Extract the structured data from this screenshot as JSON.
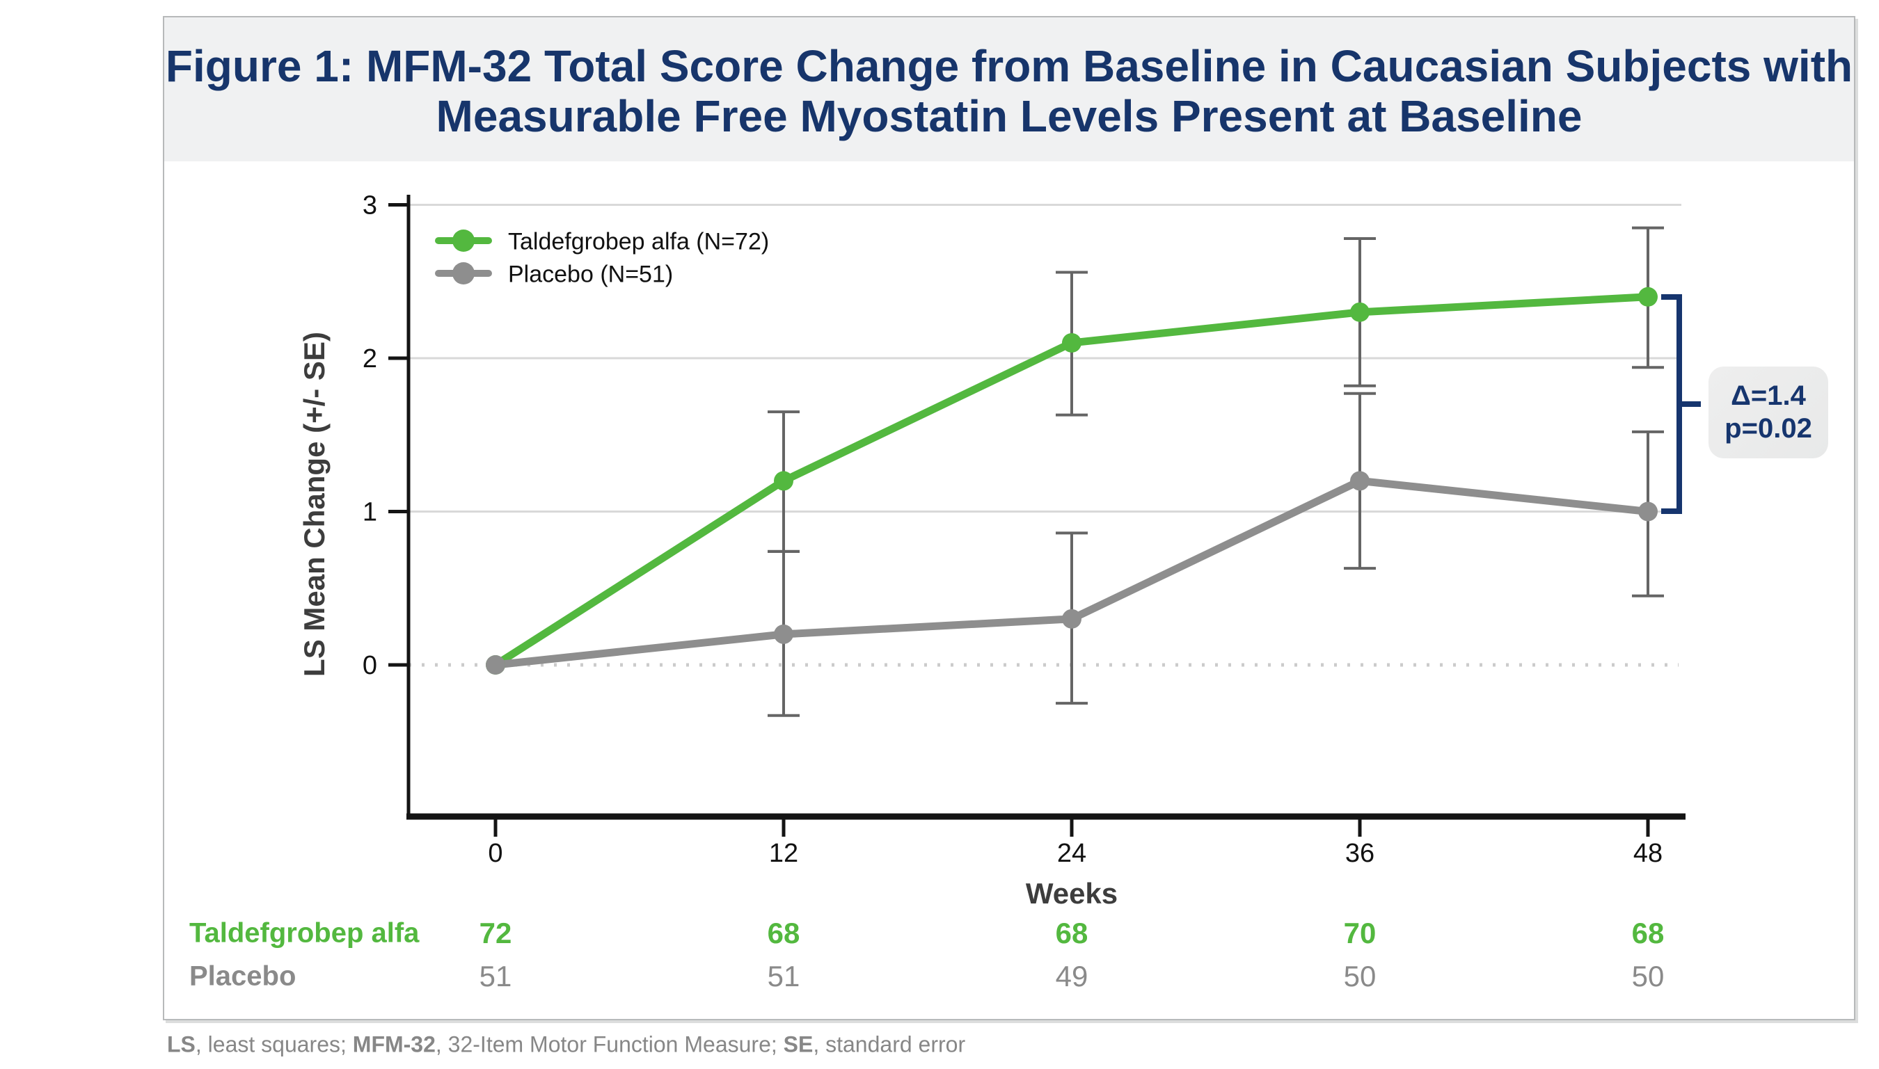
{
  "figure": {
    "title_lines": [
      "Figure 1: MFM-32 Total Score Change from Baseline in Caucasian Subjects with",
      "Measurable Free Myostatin Levels Present at Baseline"
    ]
  },
  "chart_data": {
    "type": "line",
    "title": "Figure 1: MFM-32 Total Score Change from Baseline in Caucasian Subjects with Measurable Free Myostatin Levels Present at Baseline",
    "xlabel": "Weeks",
    "ylabel": "LS Mean Change (+/- SE)",
    "x": [
      0,
      12,
      24,
      36,
      48
    ],
    "xlim": [
      0,
      48
    ],
    "ylim": [
      -1,
      3
    ],
    "yticks": [
      0,
      1,
      2,
      3
    ],
    "grid": "light horizontal gridlines at 1,2,3; dotted line at 0",
    "legend_position": "top-left",
    "series": [
      {
        "name": "Taldefgrobep alfa",
        "legend_label": "Taldefgrobep alfa (N=72)",
        "n": 72,
        "color": "#53b83f",
        "values": [
          0,
          1.2,
          2.1,
          2.3,
          2.4
        ],
        "se_upper": [
          0,
          1.65,
          2.56,
          2.78,
          2.85
        ],
        "se_lower": [
          0,
          0.74,
          1.63,
          1.82,
          1.94
        ]
      },
      {
        "name": "Placebo",
        "legend_label": "Placebo (N=51)",
        "n": 51,
        "color": "#8e8e8e",
        "values": [
          0,
          0.2,
          0.3,
          1.2,
          1.0
        ],
        "se_upper": [
          0,
          0.74,
          0.86,
          1.77,
          1.52
        ],
        "se_lower": [
          0,
          -0.33,
          -0.25,
          0.63,
          0.45
        ]
      }
    ],
    "annotation": {
      "delta_label": "Δ=1.4",
      "p_label": "p=0.02",
      "week": 48
    }
  },
  "counts_table": {
    "rows": [
      {
        "label": "Taldefgrobep alfa",
        "color": "#53b83f",
        "bold_values": true,
        "values": [
          "72",
          "68",
          "68",
          "70",
          "68"
        ]
      },
      {
        "label": "Placebo",
        "color": "#8a8a8a",
        "bold_values": false,
        "values": [
          "51",
          "51",
          "49",
          "50",
          "50"
        ]
      }
    ]
  },
  "footnote": {
    "parts": [
      {
        "text": "LS",
        "bold": true
      },
      {
        "text": ", least squares; ",
        "bold": false
      },
      {
        "text": "MFM-32",
        "bold": true
      },
      {
        "text": ", 32-Item Motor Function Measure; ",
        "bold": false
      },
      {
        "text": "SE",
        "bold": true
      },
      {
        "text": ", standard error",
        "bold": false
      }
    ]
  },
  "colors": {
    "title_navy": "#17356b",
    "annotation_navy": "#16356e",
    "axis": "#141414",
    "grid": "#d9d9d9",
    "zero_line": "#cbcbcb",
    "error_bar": "#656565",
    "title_band_bg": "#f0f1f2",
    "annotation_bg": "#ececec",
    "footnote_gray": "#878787"
  }
}
